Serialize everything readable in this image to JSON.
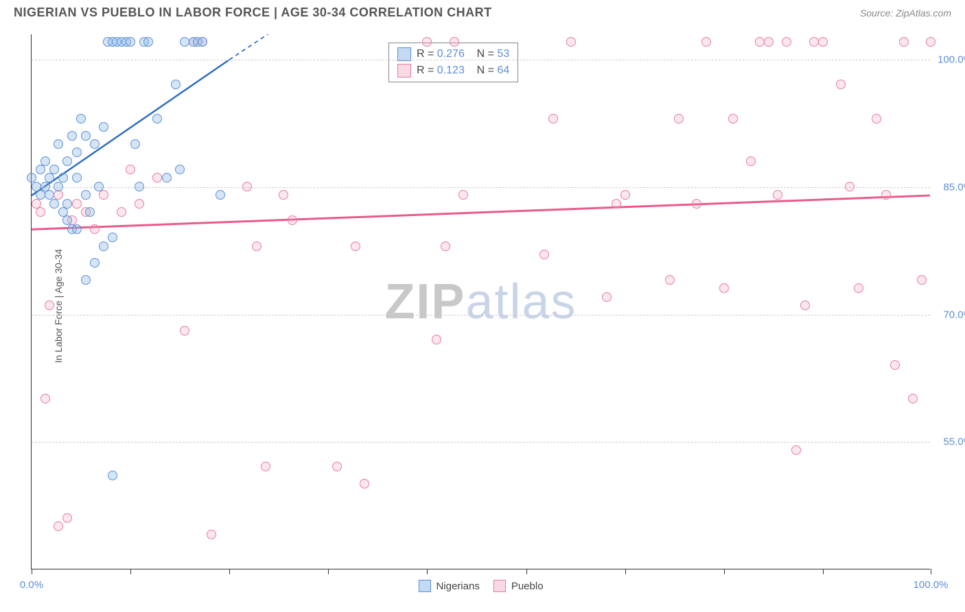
{
  "chart": {
    "type": "scatter",
    "title": "NIGERIAN VS PUEBLO IN LABOR FORCE | AGE 30-34 CORRELATION CHART",
    "source": "Source: ZipAtlas.com",
    "ylabel": "In Labor Force | Age 30-34",
    "background_color": "#ffffff",
    "grid_color": "#cccccc",
    "axis_color": "#333333",
    "tick_label_color": "#5b8fd6",
    "xlim": [
      0,
      100
    ],
    "ylim": [
      40,
      103
    ],
    "yticks": [
      55.0,
      70.0,
      85.0,
      100.0
    ],
    "ytick_labels": [
      "55.0%",
      "70.0%",
      "85.0%",
      "100.0%"
    ],
    "xticks_major": [
      0,
      100
    ],
    "xtick_labels": [
      "0.0%",
      "100.0%"
    ],
    "xticks_minor": [
      11,
      22,
      33,
      44,
      55,
      66,
      77,
      88
    ],
    "watermark": {
      "zip": "ZIP",
      "atlas": "atlas"
    },
    "point_radius": 7,
    "series": [
      {
        "name": "Nigerians",
        "swatch_fill": "rgba(135,181,230,0.5)",
        "swatch_border": "#5b8fd6",
        "point_fill": "rgba(135,181,230,0.35)",
        "point_border": "#5b8fd6",
        "r_value": "0.276",
        "n_value": "53",
        "trend": {
          "x1": 0,
          "y1": 84,
          "x2": 22,
          "y2": 100,
          "dash_x2": 32,
          "dash_y2": 107,
          "color": "#2d6cc0",
          "width": 2.5
        },
        "points": [
          [
            0,
            86
          ],
          [
            0.5,
            85
          ],
          [
            1,
            87
          ],
          [
            1,
            84
          ],
          [
            1.5,
            85
          ],
          [
            1.5,
            88
          ],
          [
            2,
            86
          ],
          [
            2,
            84
          ],
          [
            2.5,
            83
          ],
          [
            2.5,
            87
          ],
          [
            3,
            90
          ],
          [
            3,
            85
          ],
          [
            3.5,
            82
          ],
          [
            3.5,
            86
          ],
          [
            4,
            88
          ],
          [
            4,
            83
          ],
          [
            4.5,
            91
          ],
          [
            4.5,
            80
          ],
          [
            5,
            89
          ],
          [
            5,
            86
          ],
          [
            5.5,
            93
          ],
          [
            6,
            91
          ],
          [
            6,
            84
          ],
          [
            6.5,
            82
          ],
          [
            7,
            90
          ],
          [
            7.5,
            85
          ],
          [
            8,
            92
          ],
          [
            8.5,
            102
          ],
          [
            9,
            79
          ],
          [
            9,
            102
          ],
          [
            9.5,
            102
          ],
          [
            10,
            102
          ],
          [
            10.5,
            102
          ],
          [
            11,
            102
          ],
          [
            11.5,
            90
          ],
          [
            12,
            85
          ],
          [
            12.5,
            102
          ],
          [
            13,
            102
          ],
          [
            14,
            93
          ],
          [
            15,
            86
          ],
          [
            16,
            97
          ],
          [
            16.5,
            87
          ],
          [
            17,
            102
          ],
          [
            18,
            102
          ],
          [
            18.5,
            102
          ],
          [
            19,
            102
          ],
          [
            7,
            76
          ],
          [
            8,
            78
          ],
          [
            5,
            80
          ],
          [
            6,
            74
          ],
          [
            9,
            51
          ],
          [
            21,
            84
          ],
          [
            4,
            81
          ]
        ]
      },
      {
        "name": "Pueblo",
        "swatch_fill": "rgba(240,160,185,0.4)",
        "swatch_border": "#e87ca0",
        "point_fill": "rgba(240,160,185,0.25)",
        "point_border": "#e87ca0",
        "r_value": "0.123",
        "n_value": "64",
        "trend": {
          "x1": 0,
          "y1": 80,
          "x2": 100,
          "y2": 84,
          "color": "#e85a8a",
          "width": 3
        },
        "points": [
          [
            0.5,
            83
          ],
          [
            1,
            82
          ],
          [
            1.5,
            60
          ],
          [
            2,
            71
          ],
          [
            3,
            84
          ],
          [
            3,
            45
          ],
          [
            4,
            46
          ],
          [
            4.5,
            81
          ],
          [
            5,
            83
          ],
          [
            6,
            82
          ],
          [
            7,
            80
          ],
          [
            8,
            84
          ],
          [
            10,
            82
          ],
          [
            11,
            87
          ],
          [
            12,
            83
          ],
          [
            14,
            86
          ],
          [
            17,
            68
          ],
          [
            18,
            102
          ],
          [
            19,
            102
          ],
          [
            20,
            44
          ],
          [
            24,
            85
          ],
          [
            25,
            78
          ],
          [
            26,
            52
          ],
          [
            28,
            84
          ],
          [
            29,
            81
          ],
          [
            34,
            52
          ],
          [
            36,
            78
          ],
          [
            37,
            50
          ],
          [
            44,
            102
          ],
          [
            45,
            67
          ],
          [
            46,
            78
          ],
          [
            47,
            102
          ],
          [
            48,
            84
          ],
          [
            57,
            77
          ],
          [
            58,
            93
          ],
          [
            60,
            102
          ],
          [
            64,
            72
          ],
          [
            65,
            83
          ],
          [
            66,
            84
          ],
          [
            71,
            74
          ],
          [
            72,
            93
          ],
          [
            74,
            83
          ],
          [
            75,
            102
          ],
          [
            77,
            73
          ],
          [
            78,
            93
          ],
          [
            80,
            88
          ],
          [
            81,
            102
          ],
          [
            82,
            102
          ],
          [
            83,
            84
          ],
          [
            84,
            102
          ],
          [
            85,
            54
          ],
          [
            86,
            71
          ],
          [
            87,
            102
          ],
          [
            88,
            102
          ],
          [
            90,
            97
          ],
          [
            91,
            85
          ],
          [
            92,
            73
          ],
          [
            94,
            93
          ],
          [
            95,
            84
          ],
          [
            96,
            64
          ],
          [
            97,
            102
          ],
          [
            98,
            60
          ],
          [
            99,
            74
          ],
          [
            100,
            102
          ]
        ]
      }
    ],
    "legend_stats": {
      "rows": [
        {
          "series_idx": 0,
          "r_prefix": "R =",
          "n_prefix": "N ="
        },
        {
          "series_idx": 1,
          "r_prefix": "R =",
          "n_prefix": "N ="
        }
      ]
    }
  }
}
